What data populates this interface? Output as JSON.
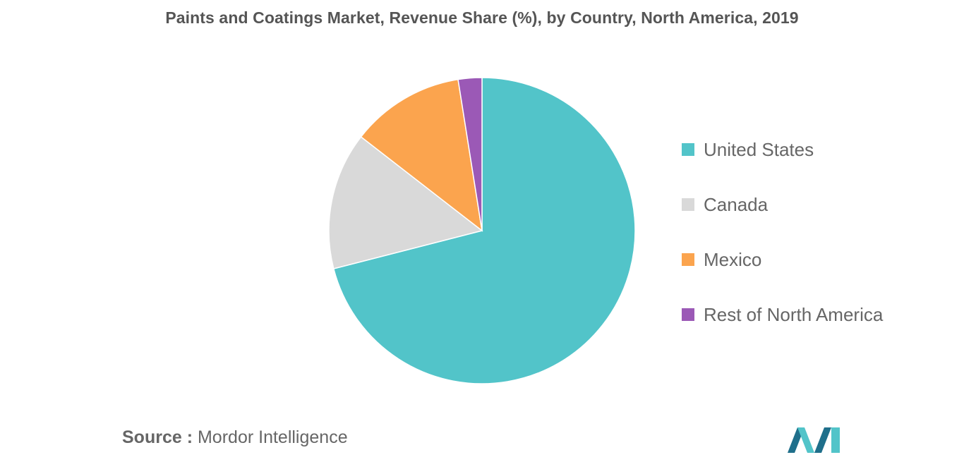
{
  "chart_data": {
    "type": "pie",
    "title": "Paints and Coatings Market, Revenue Share (%), by Country, North America, 2019",
    "slices": [
      {
        "label": "United States",
        "value": 71.0,
        "color": "#52c4c9"
      },
      {
        "label": "Canada",
        "value": 14.5,
        "color": "#d9d9d9"
      },
      {
        "label": "Mexico",
        "value": 12.0,
        "color": "#fba44e"
      },
      {
        "label": "Rest of North America",
        "value": 2.5,
        "color": "#9b59b6"
      }
    ],
    "legend_position": "right",
    "start_angle": "top",
    "direction": "clockwise"
  },
  "source": {
    "label": "Source :",
    "text": "Mordor Intelligence"
  },
  "logo": {
    "icon": "mordor-intelligence-logo-icon",
    "color_dark": "#1f6f8b",
    "color_light": "#52c4c9"
  }
}
